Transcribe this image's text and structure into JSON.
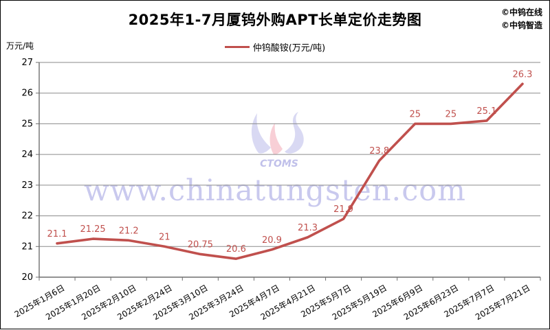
{
  "title": "2025年1-7月厦钨外购APT长单定价走势图",
  "credits": {
    "line1": "©中钨在线",
    "line2": "©中钨智造"
  },
  "y_axis_unit": "万元/吨",
  "legend": {
    "label": "仲钨酸铵(万元/吨)"
  },
  "watermark": {
    "text": "www.chinatungsten.com",
    "logo_text": "CTOMS"
  },
  "colors": {
    "line": "#C0504D",
    "data_label": "#C0504D",
    "grid": "#8a8a8a",
    "axis": "#6e6e6e",
    "watermark": "#c9c9ee"
  },
  "chart_data": {
    "type": "line",
    "title": "2025年1-7月厦钨外购APT长单定价走势图",
    "series_name": "仲钨酸铵(万元/吨)",
    "ylabel": "万元/吨",
    "categories": [
      "2025年1月6日",
      "2025年1月20日",
      "2025年2月10日",
      "2025年2月24日",
      "2025年3月10日",
      "2025年3月24日",
      "2025年4月7日",
      "2025年4月21日",
      "2025年5月7日",
      "2025年5月19日",
      "2025年6月9日",
      "2025年6月23日",
      "2025年7月7日",
      "2025年7月21日"
    ],
    "values": [
      21.1,
      21.25,
      21.2,
      21,
      20.75,
      20.6,
      20.9,
      21.3,
      21.9,
      23.8,
      25,
      25,
      25.1,
      26.3
    ],
    "ylim": [
      20,
      27
    ],
    "ytick_step": 1,
    "grid": true,
    "legend_position": "top-center",
    "data_labels": true
  }
}
